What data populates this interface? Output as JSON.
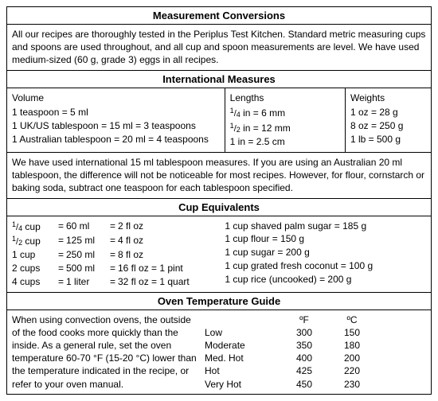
{
  "title": "Measurement Conversions",
  "intro": "All our recipes are thoroughly tested in the Periplus Test Kitchen. Standard metric measuring cups and spoons are used throughout, and all cup and spoon measurements are level. We have used medium-sized (60 g, grade 3) eggs in all recipes.",
  "intl": {
    "title": "International Measures",
    "volume_head": "Volume",
    "lengths_head": "Lengths",
    "weights_head": "Weights",
    "vol": [
      "1 teaspoon = 5 ml",
      "1 UK/US tablespoon = 15 ml = 3 teaspoons",
      "1 Australian tablespoon = 20 ml = 4 teaspoons"
    ],
    "len": [
      {
        "f": "¼",
        "u": "in = 6 mm"
      },
      {
        "f": "½",
        "u": "in = 12 mm"
      },
      {
        "f": "",
        "u": "1 in = 2.5 cm"
      }
    ],
    "wt": [
      "1 oz = 28 g",
      "8 oz = 250 g",
      "1 lb = 500 g"
    ],
    "note": "We have used international 15 ml tablespoon measures. If you are using an Australian 20 ml tablespoon, the difference will not be noticeable for most recipes. However, for flour, cornstarch or baking soda, subtract one teaspoon for each tablespoon specified."
  },
  "cup": {
    "title": "Cup Equivalents",
    "left": [
      {
        "a": "¼ cup",
        "b": "60 ml",
        "c": "2 fl oz"
      },
      {
        "a": "½ cup",
        "b": "125 ml",
        "c": "4 fl oz"
      },
      {
        "a": "1 cup",
        "b": "250 ml",
        "c": "8 fl oz"
      },
      {
        "a": "2 cups",
        "b": "500 ml",
        "c": "16 fl oz = 1 pint"
      },
      {
        "a": "4 cups",
        "b": "1 liter",
        "c": "32 fl oz = 1 quart"
      }
    ],
    "right": [
      "1 cup shaved palm sugar = 185 g",
      "1 cup flour = 150 g",
      "1 cup sugar = 200 g",
      "1 cup grated fresh coconut = 100 g",
      "1 cup rice (uncooked) = 200 g"
    ]
  },
  "oven": {
    "title": "Oven Temperature Guide",
    "text": "When using convection ovens, the outside of the food cooks more quickly than the inside. As a general rule, set the oven temperature 60-70 °F (15-20 °C) lower than the temperature indicated in the recipe, or refer to your oven manual.",
    "head_f": "ºF",
    "head_c": "ºC",
    "rows": [
      {
        "l": "Low",
        "f": "300",
        "c": "150"
      },
      {
        "l": "Moderate",
        "f": "350",
        "c": "180"
      },
      {
        "l": "Med. Hot",
        "f": "400",
        "c": "200"
      },
      {
        "l": "Hot",
        "f": "425",
        "c": "220"
      },
      {
        "l": "Very Hot",
        "f": "450",
        "c": "230"
      }
    ]
  }
}
